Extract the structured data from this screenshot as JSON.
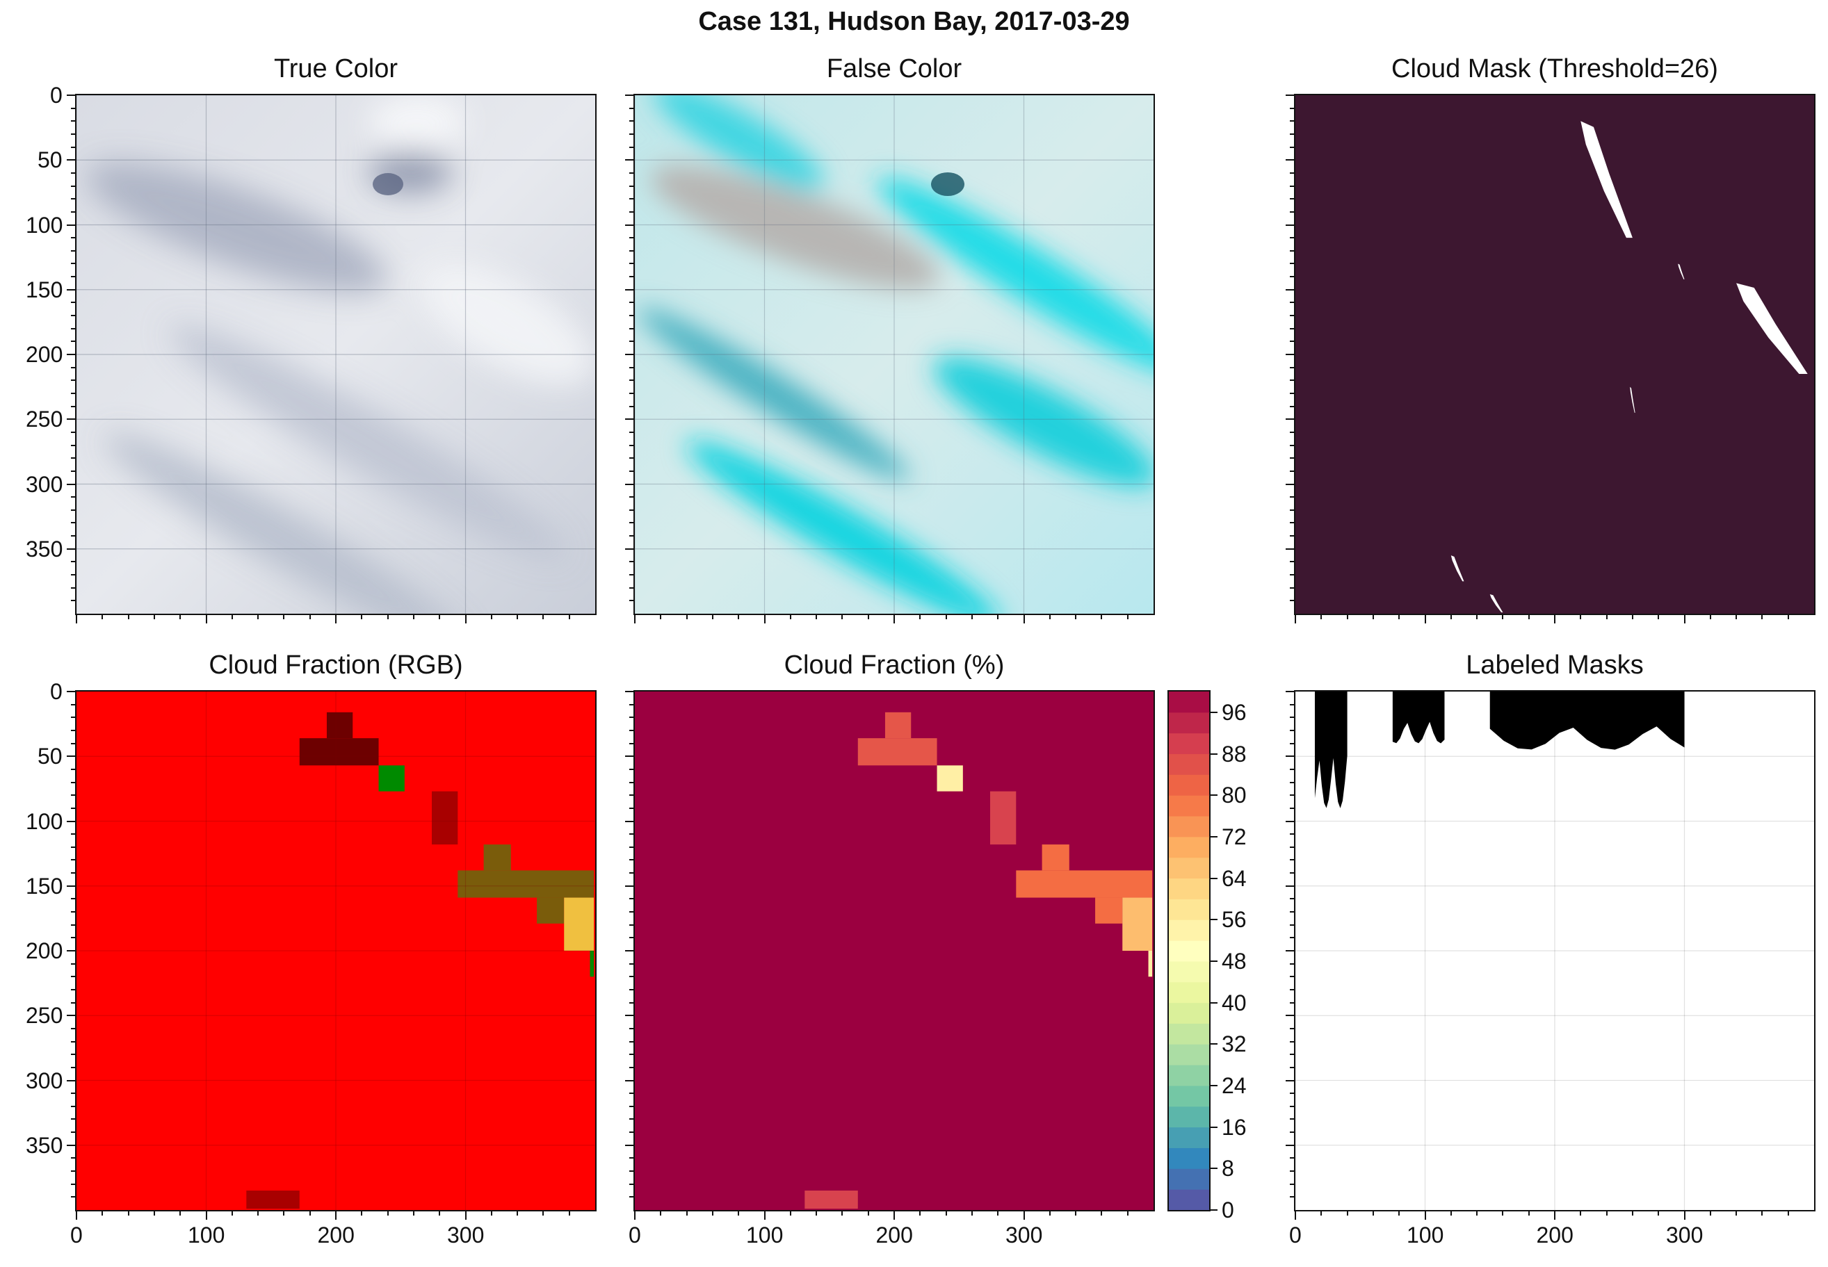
{
  "figure_title": "Case 131, Hudson Bay, 2017-03-29",
  "panels": {
    "true_color": {
      "title": "True Color"
    },
    "false_color": {
      "title": "False Color"
    },
    "cloud_mask": {
      "title": "Cloud Mask (Threshold=26)"
    },
    "cloud_fraction_rgb": {
      "title": "Cloud Fraction (RGB)"
    },
    "cloud_fraction_pct": {
      "title": "Cloud Fraction (%)"
    },
    "labeled_masks": {
      "title": "Labeled Masks"
    }
  },
  "colors": {
    "mask_background": "#3d1730",
    "mask_foreground": "#ffffff",
    "fraction_red": "#ff0000",
    "fraction_dark_red": "#6d0000",
    "fraction_medium_red": "#a80000",
    "fraction_green": "#008a00",
    "fraction_olive": "#7a5c0b",
    "fraction_yellow": "#f0c040",
    "pct_background": "#9b0040"
  },
  "chart_data": {
    "type": "heatmap",
    "xlim": [
      0,
      399
    ],
    "ylim": [
      399,
      0
    ],
    "x_ticks": [
      "0",
      "100",
      "200",
      "300"
    ],
    "y_ticks": [
      "0",
      "50",
      "100",
      "150",
      "200",
      "250",
      "300",
      "350"
    ],
    "grid": true,
    "colorbar": {
      "cmap": "Spectral_r",
      "range": [
        0,
        100
      ],
      "ticks": [
        "0",
        "8",
        "16",
        "24",
        "32",
        "40",
        "48",
        "56",
        "64",
        "72",
        "80",
        "88",
        "96"
      ]
    },
    "cloud_fraction_cells": [
      {
        "x": [
          193,
          213
        ],
        "y": [
          16,
          36
        ],
        "value": 85,
        "rgb": "dark_red"
      },
      {
        "x": [
          172,
          233
        ],
        "y": [
          36,
          57
        ],
        "value": 85,
        "rgb": "dark_red"
      },
      {
        "x": [
          233,
          253
        ],
        "y": [
          57,
          77
        ],
        "value": 55,
        "rgb": "green"
      },
      {
        "x": [
          274,
          294
        ],
        "y": [
          77,
          118
        ],
        "value": 89,
        "rgb": "medium_red"
      },
      {
        "x": [
          314,
          335
        ],
        "y": [
          118,
          138
        ],
        "value": 80,
        "rgb": "olive"
      },
      {
        "x": [
          294,
          399
        ],
        "y": [
          138,
          159
        ],
        "value": 80,
        "rgb": "olive"
      },
      {
        "x": [
          355,
          376
        ],
        "y": [
          159,
          179
        ],
        "value": 80,
        "rgb": "olive"
      },
      {
        "x": [
          376,
          399
        ],
        "y": [
          159,
          200
        ],
        "value": 67,
        "rgb": "yellow"
      },
      {
        "x": [
          396,
          399
        ],
        "y": [
          200,
          220
        ],
        "value": 55,
        "rgb": "green"
      },
      {
        "x": [
          131,
          172
        ],
        "y": [
          385,
          399
        ],
        "value": 89,
        "rgb": "medium_red"
      }
    ],
    "cloud_mask_regions": [
      {
        "x": [
          220,
          260
        ],
        "y": [
          20,
          110
        ]
      },
      {
        "x": [
          295,
          300
        ],
        "y": [
          130,
          142
        ]
      },
      {
        "x": [
          340,
          395
        ],
        "y": [
          145,
          215
        ]
      },
      {
        "x": [
          258,
          262
        ],
        "y": [
          225,
          245
        ]
      },
      {
        "x": [
          120,
          130
        ],
        "y": [
          355,
          375
        ]
      },
      {
        "x": [
          150,
          160
        ],
        "y": [
          385,
          399
        ]
      }
    ],
    "labeled_mask_regions": [
      {
        "x": [
          15,
          40
        ],
        "y": [
          0,
          90
        ]
      },
      {
        "x": [
          75,
          115
        ],
        "y": [
          0,
          40
        ]
      },
      {
        "x": [
          150,
          300
        ],
        "y": [
          0,
          45
        ]
      }
    ]
  }
}
